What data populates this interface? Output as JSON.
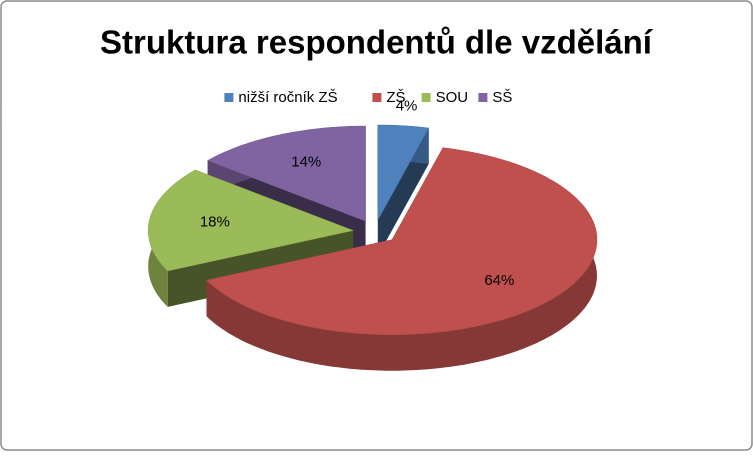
{
  "chart_data": {
    "type": "pie3d",
    "title": "Struktura respondentů dle vzdělání",
    "categories": [
      "nižší ročník ZŠ",
      "ZŠ",
      "SOU",
      "SŠ"
    ],
    "values": [
      4,
      64,
      18,
      14
    ],
    "value_labels": [
      "4%",
      "64%",
      "18%",
      "14%"
    ],
    "colors": [
      "#4f81bd",
      "#c0504d",
      "#9bbb59",
      "#8064a2"
    ],
    "legend": "top"
  }
}
